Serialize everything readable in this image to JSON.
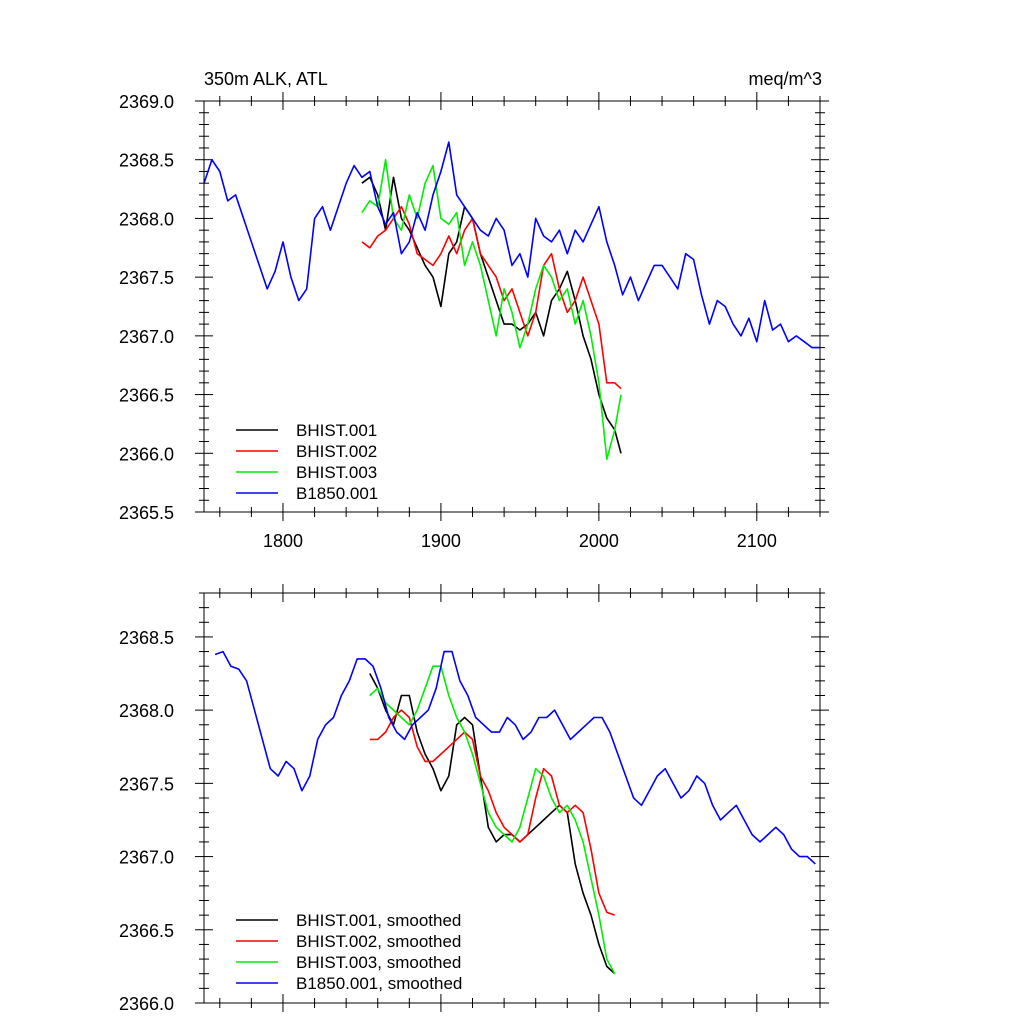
{
  "chart_data": [
    {
      "type": "line",
      "title": "350m ALK, ATL",
      "units": "meq/m^3",
      "xlabel": "",
      "ylabel": "",
      "xlim": [
        1750,
        2140
      ],
      "ylim": [
        2365.5,
        2369.0
      ],
      "x_ticks": [
        1800,
        1900,
        2000,
        2100
      ],
      "x_tick_labels": [
        "1800",
        "1900",
        "2000",
        "2100"
      ],
      "y_ticks": [
        2365.5,
        2366.0,
        2366.5,
        2367.0,
        2367.5,
        2368.0,
        2368.5,
        2369.0
      ],
      "y_tick_labels": [
        "2365.5",
        "2366.0",
        "2366.5",
        "2367.0",
        "2367.5",
        "2368.0",
        "2368.5",
        "2369.0"
      ],
      "legend_position": "lower-left",
      "grid": false,
      "series": [
        {
          "name": "BHIST.001",
          "color": "#000000",
          "x": [
            1850,
            1855,
            1860,
            1865,
            1870,
            1875,
            1880,
            1885,
            1890,
            1895,
            1900,
            1905,
            1910,
            1915,
            1920,
            1925,
            1930,
            1935,
            1940,
            1945,
            1950,
            1955,
            1960,
            1965,
            1970,
            1975,
            1980,
            1985,
            1990,
            1995,
            2000,
            2005,
            2010,
            2014
          ],
          "y": [
            2368.3,
            2368.35,
            2368.2,
            2367.9,
            2368.35,
            2368.0,
            2367.9,
            2367.75,
            2367.6,
            2367.5,
            2367.25,
            2367.7,
            2367.8,
            2368.1,
            2368.0,
            2367.7,
            2367.5,
            2367.3,
            2367.1,
            2367.1,
            2367.05,
            2367.1,
            2367.2,
            2367.0,
            2367.3,
            2367.4,
            2367.55,
            2367.3,
            2367.0,
            2366.8,
            2366.5,
            2366.3,
            2366.2,
            2366.0
          ]
        },
        {
          "name": "BHIST.002",
          "color": "#ff0000",
          "x": [
            1850,
            1855,
            1860,
            1865,
            1870,
            1875,
            1880,
            1885,
            1890,
            1895,
            1900,
            1905,
            1910,
            1915,
            1920,
            1925,
            1930,
            1935,
            1940,
            1945,
            1950,
            1955,
            1960,
            1965,
            1970,
            1975,
            1980,
            1985,
            1990,
            1995,
            2000,
            2005,
            2010,
            2014
          ],
          "y": [
            2367.8,
            2367.75,
            2367.85,
            2367.9,
            2368.0,
            2368.1,
            2367.95,
            2367.7,
            2367.65,
            2367.6,
            2367.7,
            2367.85,
            2367.7,
            2367.9,
            2368.0,
            2367.7,
            2367.6,
            2367.5,
            2367.3,
            2367.4,
            2367.2,
            2367.0,
            2367.2,
            2367.6,
            2367.7,
            2367.4,
            2367.2,
            2367.3,
            2367.5,
            2367.3,
            2367.1,
            2366.6,
            2366.6,
            2366.55
          ]
        },
        {
          "name": "BHIST.003",
          "color": "#00ee00",
          "x": [
            1850,
            1855,
            1860,
            1865,
            1870,
            1875,
            1880,
            1885,
            1890,
            1895,
            1900,
            1905,
            1910,
            1915,
            1920,
            1925,
            1930,
            1935,
            1940,
            1945,
            1950,
            1955,
            1960,
            1965,
            1970,
            1975,
            1980,
            1985,
            1990,
            1995,
            2000,
            2005,
            2010,
            2014
          ],
          "y": [
            2368.05,
            2368.15,
            2368.1,
            2368.5,
            2368.0,
            2367.9,
            2368.2,
            2368.0,
            2368.3,
            2368.45,
            2368.0,
            2367.95,
            2368.05,
            2367.6,
            2367.8,
            2367.6,
            2367.3,
            2367.0,
            2367.4,
            2367.2,
            2366.9,
            2367.1,
            2367.4,
            2367.6,
            2367.5,
            2367.3,
            2367.4,
            2367.1,
            2367.3,
            2367.0,
            2366.6,
            2365.95,
            2366.2,
            2366.5
          ]
        },
        {
          "name": "B1850.001",
          "color": "#0000ff",
          "x": [
            1750,
            1755,
            1760,
            1765,
            1770,
            1775,
            1780,
            1785,
            1790,
            1795,
            1800,
            1805,
            1810,
            1815,
            1820,
            1825,
            1830,
            1835,
            1840,
            1845,
            1850,
            1855,
            1860,
            1865,
            1870,
            1875,
            1880,
            1885,
            1890,
            1895,
            1900,
            1905,
            1910,
            1915,
            1920,
            1925,
            1930,
            1935,
            1940,
            1945,
            1950,
            1955,
            1960,
            1965,
            1970,
            1975,
            1980,
            1985,
            1990,
            1995,
            2000,
            2005,
            2010,
            2015,
            2020,
            2025,
            2030,
            2035,
            2040,
            2045,
            2050,
            2055,
            2060,
            2065,
            2070,
            2075,
            2080,
            2085,
            2090,
            2095,
            2100,
            2105,
            2110,
            2115,
            2120,
            2125,
            2130,
            2135,
            2140
          ],
          "y": [
            2368.3,
            2368.5,
            2368.4,
            2368.15,
            2368.2,
            2368.0,
            2367.8,
            2367.6,
            2367.4,
            2367.55,
            2367.8,
            2367.5,
            2367.3,
            2367.4,
            2368.0,
            2368.1,
            2367.9,
            2368.1,
            2368.3,
            2368.45,
            2368.35,
            2368.4,
            2368.1,
            2367.95,
            2368.05,
            2367.7,
            2367.8,
            2368.05,
            2367.9,
            2368.2,
            2368.4,
            2368.65,
            2368.2,
            2368.1,
            2368.0,
            2367.9,
            2367.85,
            2368.0,
            2367.9,
            2367.6,
            2367.7,
            2367.5,
            2368.0,
            2367.85,
            2367.8,
            2367.9,
            2367.7,
            2367.9,
            2367.8,
            2367.95,
            2368.1,
            2367.8,
            2367.6,
            2367.35,
            2367.5,
            2367.3,
            2367.45,
            2367.6,
            2367.6,
            2367.5,
            2367.4,
            2367.7,
            2367.65,
            2367.35,
            2367.1,
            2367.3,
            2367.25,
            2367.1,
            2367.0,
            2367.15,
            2366.95,
            2367.3,
            2367.05,
            2367.1,
            2366.95,
            2367.0,
            2366.95,
            2366.9,
            2366.9
          ]
        }
      ]
    },
    {
      "type": "line",
      "title": "",
      "xlabel": "",
      "ylabel": "",
      "xlim": [
        1750,
        2140
      ],
      "ylim": [
        2366.0,
        2368.8
      ],
      "x_ticks": [
        1800,
        1900,
        2000,
        2100
      ],
      "x_tick_labels": [],
      "y_ticks": [
        2366.0,
        2366.5,
        2367.0,
        2367.5,
        2368.0,
        2368.5
      ],
      "y_tick_labels": [
        "2366.0",
        "2366.5",
        "2367.0",
        "2367.5",
        "2368.0",
        "2368.5"
      ],
      "legend_position": "lower-left",
      "grid": false,
      "series": [
        {
          "name": "BHIST.001, smoothed",
          "color": "#000000",
          "x": [
            1855,
            1860,
            1865,
            1870,
            1875,
            1880,
            1885,
            1890,
            1895,
            1900,
            1905,
            1910,
            1915,
            1920,
            1925,
            1930,
            1935,
            1940,
            1945,
            1950,
            1955,
            1960,
            1965,
            1970,
            1975,
            1980,
            1985,
            1990,
            1995,
            2000,
            2005,
            2010
          ],
          "y": [
            2368.25,
            2368.15,
            2368.0,
            2367.9,
            2368.1,
            2368.1,
            2367.85,
            2367.7,
            2367.6,
            2367.45,
            2367.55,
            2367.9,
            2367.95,
            2367.9,
            2367.55,
            2367.2,
            2367.1,
            2367.15,
            2367.15,
            2367.1,
            2367.15,
            2367.2,
            2367.25,
            2367.3,
            2367.35,
            2367.3,
            2366.95,
            2366.75,
            2366.6,
            2366.4,
            2366.25,
            2366.2
          ]
        },
        {
          "name": "BHIST.002, smoothed",
          "color": "#ff0000",
          "x": [
            1855,
            1860,
            1865,
            1870,
            1875,
            1880,
            1885,
            1890,
            1895,
            1900,
            1905,
            1910,
            1915,
            1920,
            1925,
            1930,
            1935,
            1940,
            1945,
            1950,
            1955,
            1960,
            1965,
            1970,
            1975,
            1980,
            1985,
            1990,
            1995,
            2000,
            2005,
            2010
          ],
          "y": [
            2367.8,
            2367.8,
            2367.85,
            2367.95,
            2368.0,
            2367.95,
            2367.75,
            2367.65,
            2367.65,
            2367.7,
            2367.75,
            2367.8,
            2367.85,
            2367.8,
            2367.55,
            2367.45,
            2367.3,
            2367.2,
            2367.15,
            2367.1,
            2367.15,
            2367.4,
            2367.6,
            2367.55,
            2367.35,
            2367.3,
            2367.35,
            2367.3,
            2367.05,
            2366.75,
            2366.62,
            2366.6
          ]
        },
        {
          "name": "BHIST.003, smoothed",
          "color": "#00ee00",
          "x": [
            1855,
            1860,
            1865,
            1870,
            1875,
            1880,
            1885,
            1890,
            1895,
            1900,
            1905,
            1910,
            1915,
            1920,
            1925,
            1930,
            1935,
            1940,
            1945,
            1950,
            1955,
            1960,
            1965,
            1970,
            1975,
            1980,
            1985,
            1990,
            1995,
            2000,
            2005,
            2010
          ],
          "y": [
            2368.1,
            2368.15,
            2368.05,
            2368.0,
            2367.95,
            2367.9,
            2368.0,
            2368.15,
            2368.3,
            2368.3,
            2368.1,
            2367.95,
            2367.85,
            2367.7,
            2367.5,
            2367.3,
            2367.2,
            2367.15,
            2367.1,
            2367.2,
            2367.4,
            2367.6,
            2367.55,
            2367.4,
            2367.3,
            2367.35,
            2367.25,
            2367.1,
            2366.85,
            2366.6,
            2366.3,
            2366.2
          ]
        },
        {
          "name": "B1850.001, smoothed",
          "color": "#0000ff",
          "x": [
            1757,
            1762,
            1767,
            1772,
            1777,
            1782,
            1787,
            1792,
            1797,
            1802,
            1807,
            1812,
            1817,
            1822,
            1827,
            1832,
            1837,
            1842,
            1847,
            1852,
            1857,
            1862,
            1867,
            1872,
            1877,
            1882,
            1887,
            1892,
            1897,
            1902,
            1907,
            1912,
            1917,
            1922,
            1927,
            1932,
            1937,
            1942,
            1947,
            1952,
            1957,
            1962,
            1967,
            1972,
            1977,
            1982,
            1987,
            1992,
            1997,
            2002,
            2007,
            2012,
            2017,
            2022,
            2027,
            2032,
            2037,
            2042,
            2047,
            2052,
            2057,
            2062,
            2067,
            2072,
            2077,
            2082,
            2087,
            2092,
            2097,
            2102,
            2107,
            2112,
            2117,
            2122,
            2127,
            2132,
            2137
          ],
          "y": [
            2368.38,
            2368.4,
            2368.3,
            2368.28,
            2368.2,
            2368.0,
            2367.8,
            2367.6,
            2367.55,
            2367.65,
            2367.6,
            2367.45,
            2367.55,
            2367.8,
            2367.9,
            2367.95,
            2368.1,
            2368.2,
            2368.35,
            2368.35,
            2368.3,
            2368.15,
            2367.95,
            2367.85,
            2367.8,
            2367.9,
            2367.95,
            2368.0,
            2368.15,
            2368.4,
            2368.4,
            2368.2,
            2368.1,
            2367.95,
            2367.9,
            2367.85,
            2367.85,
            2367.95,
            2367.9,
            2367.8,
            2367.85,
            2367.95,
            2367.95,
            2368.0,
            2367.9,
            2367.8,
            2367.85,
            2367.9,
            2367.95,
            2367.95,
            2367.85,
            2367.7,
            2367.55,
            2367.4,
            2367.35,
            2367.45,
            2367.55,
            2367.6,
            2367.5,
            2367.4,
            2367.45,
            2367.55,
            2367.5,
            2367.35,
            2367.25,
            2367.3,
            2367.35,
            2367.25,
            2367.15,
            2367.1,
            2367.15,
            2367.2,
            2367.15,
            2367.05,
            2367.0,
            2367.0,
            2366.95
          ]
        }
      ]
    }
  ]
}
